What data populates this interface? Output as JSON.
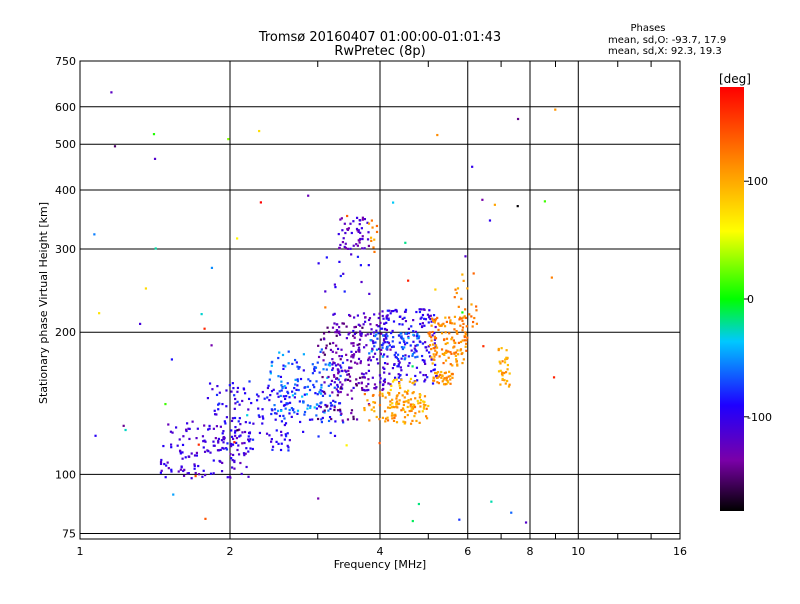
{
  "chart_data": {
    "type": "scatter",
    "title": "Tromsø 20160407 01:00:00-01:01:43",
    "subtitle": "RwPretec (8p)",
    "xlabel": "Frequency [MHz]",
    "ylabel": "Stationary phase Virtual Height [km]",
    "xscale": "log2",
    "yscale": "log",
    "xlim": [
      1,
      16
    ],
    "ylim": [
      73,
      750
    ],
    "x_ticks": [
      "1",
      "2",
      "4",
      "6",
      "8",
      "10",
      "16"
    ],
    "x_tick_values": [
      1,
      2,
      4,
      6,
      8,
      10,
      16
    ],
    "y_ticks": [
      "750",
      "600",
      "500",
      "400",
      "300",
      "200",
      "100",
      "75"
    ],
    "y_tick_values": [
      750,
      600,
      500,
      400,
      300,
      200,
      100,
      75
    ],
    "grid": true,
    "legend": {
      "title": "Phases",
      "line_o": "mean, sd,O: -93.7, 17.9",
      "line_x": "mean, sd,X:  92.3, 19.3"
    },
    "colorbar": {
      "label": "[deg]",
      "min": -180,
      "max": 180,
      "ticks": [
        "100",
        "0",
        "-100"
      ],
      "tick_values": [
        100,
        0,
        -100
      ],
      "colormap": "rainbow"
    },
    "point_groups": [
      {
        "x": [
          1.45,
          2.2
        ],
        "y": [
          98,
          130
        ],
        "phase": -110,
        "n": 140
      },
      {
        "x": [
          1.8,
          2.7
        ],
        "y": [
          112,
          158
        ],
        "phase": -95,
        "n": 130
      },
      {
        "x": [
          2.5,
          3.4
        ],
        "y": [
          120,
          175
        ],
        "phase": -80,
        "n": 110
      },
      {
        "x": [
          2.4,
          3.2
        ],
        "y": [
          135,
          185
        ],
        "phase": -55,
        "n": 60
      },
      {
        "x": [
          3.0,
          3.8
        ],
        "y": [
          130,
          210
        ],
        "phase": -140,
        "n": 100
      },
      {
        "x": [
          3.2,
          4.2
        ],
        "y": [
          150,
          220
        ],
        "phase": -118,
        "n": 160
      },
      {
        "x": [
          4.0,
          5.2
        ],
        "y": [
          155,
          225
        ],
        "phase": -100,
        "n": 160
      },
      {
        "x": [
          3.8,
          4.8
        ],
        "y": [
          175,
          200
        ],
        "phase": -65,
        "n": 60
      },
      {
        "x": [
          3.7,
          5.0
        ],
        "y": [
          128,
          150
        ],
        "phase": 110,
        "n": 90
      },
      {
        "x": [
          4.2,
          5.0
        ],
        "y": [
          135,
          160
        ],
        "phase": 95,
        "n": 50
      },
      {
        "x": [
          5.0,
          6.0
        ],
        "y": [
          170,
          215
        ],
        "phase": 115,
        "n": 120
      },
      {
        "x": [
          5.1,
          5.6
        ],
        "y": [
          155,
          165
        ],
        "phase": 110,
        "n": 40
      },
      {
        "x": [
          5.5,
          6.3
        ],
        "y": [
          205,
          270
        ],
        "phase": 115,
        "n": 30
      },
      {
        "x": [
          6.9,
          7.3
        ],
        "y": [
          150,
          190
        ],
        "phase": 105,
        "n": 30
      },
      {
        "x": [
          3.3,
          3.8
        ],
        "y": [
          300,
          350
        ],
        "phase": -120,
        "n": 50
      },
      {
        "x": [
          3.8,
          3.95
        ],
        "y": [
          290,
          370
        ],
        "phase": 115,
        "n": 10
      },
      {
        "x": [
          3.0,
          3.9
        ],
        "y": [
          240,
          300
        ],
        "phase": -100,
        "n": 15
      },
      {
        "x": [
          1.05,
          9.0
        ],
        "y": [
          75,
          680
        ],
        "phase": 0,
        "n": 60,
        "mixed": true
      }
    ]
  }
}
